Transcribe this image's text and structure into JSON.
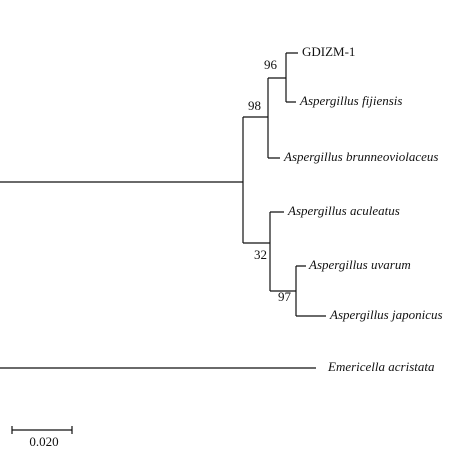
{
  "tree": {
    "leaves": [
      "GDIZM-1",
      "Aspergillus fijiensis",
      "Aspergillus brunneoviolaceus",
      "Aspergillus aculeatus",
      "Aspergillus uvarum",
      "Aspergillus japonicus",
      "Emericella acristata"
    ],
    "bootstrap": [
      96,
      98,
      32,
      97
    ],
    "scale_label": "0.020"
  }
}
